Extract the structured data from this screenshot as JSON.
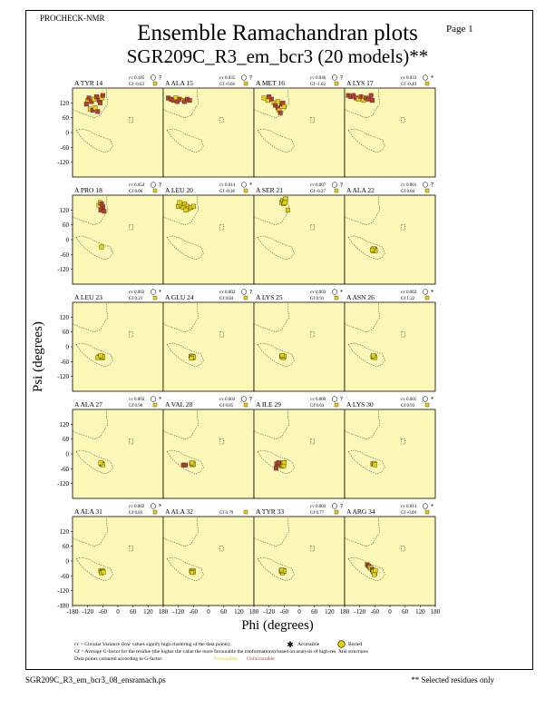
{
  "header": {
    "program": "PROCHECK-NMR",
    "page": "Page  1",
    "title": "Ensemble Ramachandran plots",
    "subtitle": "SGR209C_R3_em_bcr3 (20 models)**"
  },
  "chart_data": {
    "type": "scatter",
    "title": "Ensemble Ramachandran plots",
    "subtitle": "SGR209C_R3_em_bcr3 (20 models)**",
    "xlabel": "Phi (degrees)",
    "ylabel": "Psi (degrees)",
    "xlim": [
      -180,
      180
    ],
    "ylim": [
      -180,
      180
    ],
    "xticks": [
      "-180",
      "-120",
      "-60",
      "0",
      "60",
      "120",
      "180"
    ],
    "yticks": [
      "120",
      "60",
      "0",
      "-60",
      "-120"
    ],
    "ytick_values": [
      120,
      60,
      0,
      -60,
      -120
    ],
    "extra_yticks": [
      "-180"
    ],
    "colors": {
      "favourable": "#e8d200",
      "unfavourable": "#c0392b",
      "panel_bg": "#fcf9b8"
    },
    "panels": [
      {
        "residue": "A TYR 14",
        "cv": "cv 0.185",
        "gf": "Gf -0.63",
        "symbol": "?",
        "points": [
          [
            -120,
            130,
            0
          ],
          [
            -115,
            140,
            1
          ],
          [
            -105,
            125,
            1
          ],
          [
            -95,
            135,
            0
          ],
          [
            -85,
            145,
            1
          ],
          [
            -75,
            130,
            1
          ],
          [
            -65,
            140,
            0
          ],
          [
            -110,
            95,
            0
          ],
          [
            -100,
            90,
            1
          ],
          [
            -90,
            100,
            0
          ],
          [
            -80,
            85,
            1
          ],
          [
            -60,
            150,
            1
          ],
          [
            -70,
            120,
            1
          ],
          [
            -125,
            115,
            1
          ]
        ]
      },
      {
        "residue": "A ALA 15",
        "cv": "cv 0.035",
        "gf": "Gf -0.66",
        "symbol": "?",
        "points": [
          [
            -160,
            140,
            1
          ],
          [
            -150,
            135,
            1
          ],
          [
            -140,
            130,
            1
          ],
          [
            -130,
            140,
            0
          ],
          [
            -125,
            125,
            1
          ],
          [
            -115,
            135,
            1
          ],
          [
            -100,
            130,
            0
          ],
          [
            -95,
            125,
            1
          ],
          [
            -85,
            135,
            1
          ],
          [
            -75,
            130,
            1
          ]
        ]
      },
      {
        "residue": "A MET 16",
        "cv": "cv 0.046",
        "gf": "Gf -1.02",
        "symbol": "?",
        "points": [
          [
            -140,
            140,
            0
          ],
          [
            -125,
            130,
            0
          ],
          [
            -110,
            135,
            1
          ],
          [
            -100,
            120,
            0
          ],
          [
            -95,
            110,
            1
          ],
          [
            -85,
            100,
            1
          ],
          [
            -80,
            90,
            0
          ],
          [
            -75,
            80,
            1
          ],
          [
            -70,
            115,
            1
          ],
          [
            -85,
            125,
            0
          ],
          [
            -65,
            120,
            1
          ],
          [
            -60,
            105,
            0
          ],
          [
            -120,
            145,
            1
          ]
        ]
      },
      {
        "residue": "A LYS 17",
        "cv": "cv 0.033",
        "gf": "Gf -0.49",
        "symbol": "*",
        "points": [
          [
            -165,
            150,
            1
          ],
          [
            -155,
            145,
            1
          ],
          [
            -145,
            150,
            1
          ],
          [
            -135,
            140,
            1
          ],
          [
            -125,
            135,
            0
          ],
          [
            -115,
            145,
            1
          ],
          [
            -105,
            130,
            0
          ],
          [
            -95,
            140,
            1
          ],
          [
            -85,
            135,
            1
          ],
          [
            -75,
            150,
            1
          ],
          [
            -70,
            130,
            1
          ]
        ]
      },
      {
        "residue": "A PRO 18",
        "cv": "cv 0.054",
        "gf": "Gf 0.06",
        "symbol": "?",
        "points": [
          [
            -75,
            140,
            0
          ],
          [
            -70,
            150,
            0
          ],
          [
            -65,
            145,
            1
          ],
          [
            -60,
            135,
            1
          ],
          [
            -62,
            125,
            1
          ],
          [
            -68,
            120,
            1
          ],
          [
            -55,
            115,
            1
          ],
          [
            -65,
            -30,
            0
          ]
        ]
      },
      {
        "residue": "A LEU 20",
        "cv": "cv 0.014",
        "gf": "Gf -0.36",
        "symbol": "*",
        "points": [
          [
            -120,
            135,
            0
          ],
          [
            -110,
            140,
            0
          ],
          [
            -100,
            130,
            0
          ],
          [
            -95,
            145,
            0
          ],
          [
            -85,
            135,
            0
          ],
          [
            -80,
            125,
            0
          ],
          [
            -70,
            130,
            0
          ],
          [
            -60,
            135,
            0
          ],
          [
            -115,
            150,
            0
          ],
          [
            -90,
            120,
            0
          ]
        ]
      },
      {
        "residue": "A SER 21",
        "cv": "cv 0.007",
        "gf": "Gf -0.27",
        "symbol": "?",
        "points": [
          [
            -70,
            150,
            0
          ],
          [
            -65,
            160,
            0
          ],
          [
            -60,
            155,
            0
          ],
          [
            -62,
            145,
            0
          ],
          [
            -55,
            165,
            0
          ],
          [
            -58,
            150,
            0
          ],
          [
            -45,
            120,
            0
          ]
        ]
      },
      {
        "residue": "A ALA 22",
        "cv": "cv 0.001",
        "gf": "Gf 0.84",
        "symbol": "?",
        "points": [
          [
            -68,
            -40,
            0
          ],
          [
            -64,
            -42,
            0
          ],
          [
            -62,
            -38,
            0
          ],
          [
            -66,
            -45,
            0
          ],
          [
            -60,
            -40,
            0
          ],
          [
            -58,
            -44,
            0
          ],
          [
            -65,
            -36,
            0
          ],
          [
            -70,
            -42,
            0
          ]
        ]
      },
      {
        "residue": "A LEU 23",
        "cv": "cv 0.002",
        "gf": "Gf 0.21",
        "symbol": "*",
        "points": [
          [
            -75,
            -40,
            0
          ],
          [
            -70,
            -42,
            0
          ],
          [
            -65,
            -38,
            0
          ],
          [
            -62,
            -45,
            0
          ],
          [
            -60,
            -40,
            0
          ],
          [
            -80,
            -44,
            0
          ],
          [
            -68,
            -36,
            0
          ]
        ]
      },
      {
        "residue": "A GLU 24",
        "cv": "cv 0.002",
        "gf": "Gf 0.84",
        "symbol": "?",
        "points": [
          [
            -70,
            -38,
            0
          ],
          [
            -66,
            -42,
            0
          ],
          [
            -62,
            -45,
            0
          ],
          [
            -64,
            -38,
            0
          ],
          [
            -60,
            -41,
            0
          ],
          [
            -68,
            -46,
            0
          ]
        ]
      },
      {
        "residue": "A LYS 25",
        "cv": "cv 0.003",
        "gf": "Gf 0.91",
        "symbol": "*",
        "points": [
          [
            -70,
            -40,
            0
          ],
          [
            -66,
            -38,
            0
          ],
          [
            -62,
            -42,
            0
          ],
          [
            -64,
            -44,
            0
          ],
          [
            -60,
            -38,
            0
          ],
          [
            -68,
            -35,
            0
          ]
        ]
      },
      {
        "residue": "A ASN 26",
        "cv": "cv 0.002",
        "gf": "Gf 1.22",
        "symbol": "*",
        "points": [
          [
            -68,
            -40,
            0
          ],
          [
            -64,
            -42,
            0
          ],
          [
            -62,
            -38,
            0
          ],
          [
            -60,
            -44,
            0
          ],
          [
            -66,
            -36,
            0
          ]
        ]
      },
      {
        "residue": "A ALA 27",
        "cv": "cv 0.002",
        "gf": "Gf 0.90",
        "symbol": "*",
        "points": [
          [
            -66,
            -40,
            0
          ],
          [
            -62,
            -42,
            0
          ],
          [
            -64,
            -38,
            0
          ],
          [
            -60,
            -44,
            0
          ],
          [
            -68,
            -36,
            0
          ]
        ]
      },
      {
        "residue": "A VAL 28",
        "cv": "cv 0.003",
        "gf": "Gf 0.85",
        "symbol": "?",
        "points": [
          [
            -100,
            -45,
            1
          ],
          [
            -92,
            -45,
            1
          ],
          [
            -68,
            -40,
            0
          ],
          [
            -64,
            -44,
            0
          ],
          [
            -62,
            -38,
            0
          ],
          [
            -60,
            -42,
            0
          ],
          [
            -66,
            -36,
            0
          ]
        ]
      },
      {
        "residue": "A ILE 29",
        "cv": "cv 0.009",
        "gf": "Gf 0.63",
        "symbol": "?",
        "points": [
          [
            -78,
            -45,
            0
          ],
          [
            -75,
            -40,
            0
          ],
          [
            -70,
            -50,
            0
          ],
          [
            -72,
            -38,
            0
          ],
          [
            -68,
            -46,
            0
          ],
          [
            -65,
            -42,
            0
          ],
          [
            -62,
            -48,
            0
          ],
          [
            -90,
            -40,
            1
          ],
          [
            -92,
            -58,
            1
          ],
          [
            -82,
            -35,
            1
          ],
          [
            -60,
            -35,
            0
          ]
        ]
      },
      {
        "residue": "A LYS 30",
        "cv": "cv 0.005",
        "gf": "Gf 0.93",
        "symbol": "*",
        "points": [
          [
            -68,
            -40,
            0
          ],
          [
            -64,
            -42,
            0
          ],
          [
            -62,
            -38,
            0
          ],
          [
            -60,
            -44,
            0
          ]
        ]
      },
      {
        "residue": "A ALA 31",
        "cv": "cv 0.002",
        "gf": "Gf 0.83",
        "symbol": "*",
        "points": [
          [
            -68,
            -40,
            0
          ],
          [
            -64,
            -44,
            0
          ],
          [
            -62,
            -38,
            0
          ],
          [
            -60,
            -42,
            0
          ],
          [
            -66,
            -48,
            0
          ],
          [
            -58,
            -45,
            0
          ]
        ]
      },
      {
        "residue": "A ALA 32",
        "cv": "",
        "gf": "Gf 0.79",
        "symbol": "",
        "points": [
          [
            -68,
            -40,
            0
          ],
          [
            -64,
            -42,
            0
          ],
          [
            -62,
            -38,
            0
          ],
          [
            -60,
            -44,
            0
          ],
          [
            -66,
            -46,
            0
          ]
        ]
      },
      {
        "residue": "A TYR 33",
        "cv": "cv 0.003",
        "gf": "Gf 0.77",
        "symbol": "?",
        "points": [
          [
            -72,
            -40,
            0
          ],
          [
            -68,
            -44,
            0
          ],
          [
            -64,
            -38,
            0
          ],
          [
            -62,
            -42,
            0
          ],
          [
            -66,
            -48,
            0
          ],
          [
            -60,
            -40,
            0
          ],
          [
            -70,
            -36,
            0
          ]
        ]
      },
      {
        "residue": "A ARG 34",
        "cv": "cv 0.013",
        "gf": "Gf -0.09",
        "symbol": "*",
        "points": [
          [
            -90,
            -15,
            1
          ],
          [
            -85,
            -20,
            1
          ],
          [
            -80,
            -25,
            0
          ],
          [
            -75,
            -30,
            0
          ],
          [
            -70,
            -35,
            1
          ],
          [
            -68,
            -40,
            0
          ],
          [
            -64,
            -45,
            0
          ],
          [
            -60,
            -50,
            0
          ],
          [
            -66,
            -42,
            0
          ],
          [
            -58,
            -38,
            0
          ],
          [
            -62,
            -55,
            0
          ]
        ]
      }
    ]
  },
  "footnotes": {
    "cv_line": "cv = Circular Variance (low values signify high clustering of the data points).",
    "accessible": "Accessible",
    "buried": "Buried",
    "gf_line": "Gf = Average G-factor for the residue (the higher the value the more favourable the conformations) based on analysis of high-res. Xtal structures",
    "colour_line": "Data points coloured according to G-factor:",
    "favourable": "Favourable",
    "unfavourable": "Unfavourable"
  },
  "footer": {
    "file": "SGR209C_R3_em_bcr3_08_ensramach.ps",
    "note": "** Selected residues only"
  }
}
